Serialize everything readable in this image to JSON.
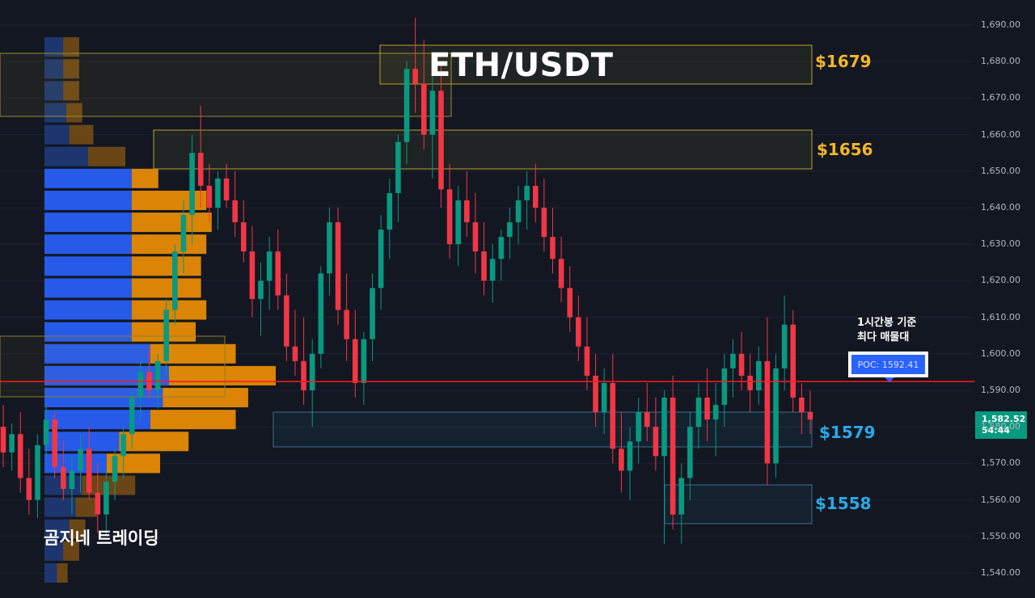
{
  "title": "ETH/USDT",
  "brand": "곰지네 트레이딩",
  "note_line1": "1시간봉 기준",
  "note_line2": "최다 매물대",
  "poc_label": "POC: 1592.41",
  "current_price": "1,582.52",
  "countdown": "54:44",
  "levels": [
    {
      "label": "$1679",
      "price": 1679,
      "color": "#f5b727",
      "kind": "resistance"
    },
    {
      "label": "$1656",
      "price": 1656,
      "color": "#f5b727",
      "kind": "resistance"
    },
    {
      "label": "$1579",
      "price": 1579,
      "color": "#29a9e8",
      "kind": "support"
    },
    {
      "label": "$1558",
      "price": 1558,
      "color": "#29a9e8",
      "kind": "support"
    }
  ],
  "colors": {
    "background": "#131722",
    "up": "#089981",
    "down": "#f23645",
    "poc_line": "#ff1a1a",
    "vp_buy": "#2962ff",
    "vp_sell": "#ff9800"
  },
  "chart_data": {
    "type": "candlestick",
    "symbol": "ETH/USDT",
    "timeframe": "1H",
    "y_axis": {
      "ticks": [
        1540,
        1550,
        1560,
        1570,
        1580,
        1590,
        1600,
        1610,
        1620,
        1630,
        1640,
        1650,
        1660,
        1670,
        1680,
        1690
      ],
      "tick_labels": [
        "1,540.00",
        "1,550.00",
        "1,560.00",
        "1,570.00",
        "1,580.00",
        "1,590.00",
        "1,600.00",
        "1,610.00",
        "1,620.00",
        "1,630.00",
        "1,640.00",
        "1,650.00",
        "1,660.00",
        "1,670.00",
        "1,680.00",
        "1,690.00"
      ],
      "ylim": [
        1535,
        1694
      ]
    },
    "poc": 1592.41,
    "last_price": 1582.52,
    "volume_profile": {
      "price_levels": [
        1684,
        1678,
        1672,
        1666,
        1660,
        1654,
        1648,
        1642,
        1636,
        1630,
        1624,
        1618,
        1612,
        1606,
        1600,
        1594,
        1588,
        1582,
        1576,
        1570,
        1564,
        1558,
        1552,
        1546,
        1540
      ],
      "buy": [
        6,
        6,
        6,
        7,
        8,
        14,
        28,
        28,
        28,
        28,
        28,
        28,
        28,
        28,
        34,
        40,
        38,
        34,
        24,
        20,
        12,
        10,
        8,
        6,
        4
      ],
      "sell": [
        6,
        6,
        6,
        6,
        9,
        14,
        10,
        28,
        30,
        28,
        26,
        26,
        28,
        24,
        32,
        40,
        32,
        32,
        26,
        20,
        20,
        8,
        6,
        6,
        4
      ]
    },
    "candles": [
      [
        1580,
        1586,
        1569,
        1573
      ],
      [
        1573,
        1581,
        1568,
        1578
      ],
      [
        1578,
        1584,
        1562,
        1566
      ],
      [
        1566,
        1574,
        1556,
        1560
      ],
      [
        1560,
        1578,
        1555,
        1575
      ],
      [
        1575,
        1586,
        1572,
        1582
      ],
      [
        1582,
        1584,
        1566,
        1569
      ],
      [
        1569,
        1576,
        1560,
        1563
      ],
      [
        1563,
        1572,
        1556,
        1568
      ],
      [
        1568,
        1578,
        1562,
        1574
      ],
      [
        1574,
        1580,
        1560,
        1562
      ],
      [
        1562,
        1570,
        1551,
        1556
      ],
      [
        1556,
        1568,
        1550,
        1565
      ],
      [
        1565,
        1574,
        1560,
        1572
      ],
      [
        1572,
        1580,
        1566,
        1578
      ],
      [
        1578,
        1590,
        1574,
        1588
      ],
      [
        1588,
        1598,
        1582,
        1595
      ],
      [
        1595,
        1602,
        1588,
        1590
      ],
      [
        1590,
        1600,
        1585,
        1598
      ],
      [
        1598,
        1615,
        1594,
        1612
      ],
      [
        1612,
        1630,
        1608,
        1628
      ],
      [
        1628,
        1642,
        1622,
        1638
      ],
      [
        1638,
        1660,
        1630,
        1655
      ],
      [
        1655,
        1668,
        1640,
        1646
      ],
      [
        1646,
        1652,
        1636,
        1640
      ],
      [
        1640,
        1650,
        1634,
        1648
      ],
      [
        1648,
        1652,
        1640,
        1642
      ],
      [
        1642,
        1650,
        1632,
        1636
      ],
      [
        1636,
        1642,
        1625,
        1628
      ],
      [
        1628,
        1635,
        1610,
        1615
      ],
      [
        1615,
        1625,
        1605,
        1620
      ],
      [
        1620,
        1632,
        1612,
        1628
      ],
      [
        1628,
        1634,
        1612,
        1616
      ],
      [
        1616,
        1622,
        1598,
        1602
      ],
      [
        1602,
        1612,
        1594,
        1598
      ],
      [
        1598,
        1610,
        1586,
        1590
      ],
      [
        1590,
        1604,
        1580,
        1600
      ],
      [
        1600,
        1624,
        1596,
        1622
      ],
      [
        1622,
        1640,
        1616,
        1636
      ],
      [
        1636,
        1640,
        1608,
        1612
      ],
      [
        1612,
        1622,
        1598,
        1604
      ],
      [
        1604,
        1612,
        1588,
        1592
      ],
      [
        1592,
        1606,
        1586,
        1604
      ],
      [
        1604,
        1622,
        1598,
        1618
      ],
      [
        1618,
        1638,
        1612,
        1634
      ],
      [
        1634,
        1648,
        1626,
        1644
      ],
      [
        1644,
        1660,
        1636,
        1658
      ],
      [
        1658,
        1680,
        1652,
        1678
      ],
      [
        1678,
        1692,
        1666,
        1674
      ],
      [
        1674,
        1686,
        1656,
        1660
      ],
      [
        1660,
        1676,
        1648,
        1672
      ],
      [
        1672,
        1680,
        1640,
        1645
      ],
      [
        1645,
        1652,
        1626,
        1630
      ],
      [
        1630,
        1646,
        1624,
        1642
      ],
      [
        1642,
        1650,
        1632,
        1636
      ],
      [
        1636,
        1644,
        1622,
        1628
      ],
      [
        1628,
        1636,
        1616,
        1620
      ],
      [
        1620,
        1630,
        1614,
        1626
      ],
      [
        1626,
        1634,
        1620,
        1632
      ],
      [
        1632,
        1640,
        1626,
        1636
      ],
      [
        1636,
        1646,
        1630,
        1642
      ],
      [
        1642,
        1650,
        1634,
        1646
      ],
      [
        1646,
        1652,
        1636,
        1640
      ],
      [
        1640,
        1648,
        1628,
        1632
      ],
      [
        1632,
        1640,
        1622,
        1626
      ],
      [
        1626,
        1632,
        1614,
        1618
      ],
      [
        1618,
        1624,
        1606,
        1610
      ],
      [
        1610,
        1616,
        1598,
        1602
      ],
      [
        1602,
        1610,
        1590,
        1594
      ],
      [
        1594,
        1600,
        1580,
        1584
      ],
      [
        1584,
        1596,
        1578,
        1592
      ],
      [
        1592,
        1600,
        1570,
        1574
      ],
      [
        1574,
        1584,
        1562,
        1568
      ],
      [
        1568,
        1580,
        1560,
        1576
      ],
      [
        1576,
        1588,
        1570,
        1584
      ],
      [
        1584,
        1592,
        1576,
        1580
      ],
      [
        1580,
        1588,
        1568,
        1572
      ],
      [
        1572,
        1590,
        1548,
        1588
      ],
      [
        1588,
        1594,
        1552,
        1556
      ],
      [
        1556,
        1570,
        1548,
        1566
      ],
      [
        1566,
        1584,
        1560,
        1580
      ],
      [
        1580,
        1592,
        1574,
        1588
      ],
      [
        1588,
        1596,
        1576,
        1582
      ],
      [
        1582,
        1592,
        1572,
        1586
      ],
      [
        1586,
        1600,
        1580,
        1596
      ],
      [
        1596,
        1604,
        1588,
        1600
      ],
      [
        1600,
        1606,
        1590,
        1594
      ],
      [
        1594,
        1600,
        1584,
        1590
      ],
      [
        1590,
        1602,
        1586,
        1598
      ],
      [
        1598,
        1610,
        1564,
        1570
      ],
      [
        1570,
        1600,
        1566,
        1596
      ],
      [
        1596,
        1616,
        1590,
        1608
      ],
      [
        1608,
        1612,
        1584,
        1588
      ],
      [
        1588,
        1592,
        1578,
        1584
      ],
      [
        1584,
        1590,
        1578,
        1582
      ]
    ]
  }
}
